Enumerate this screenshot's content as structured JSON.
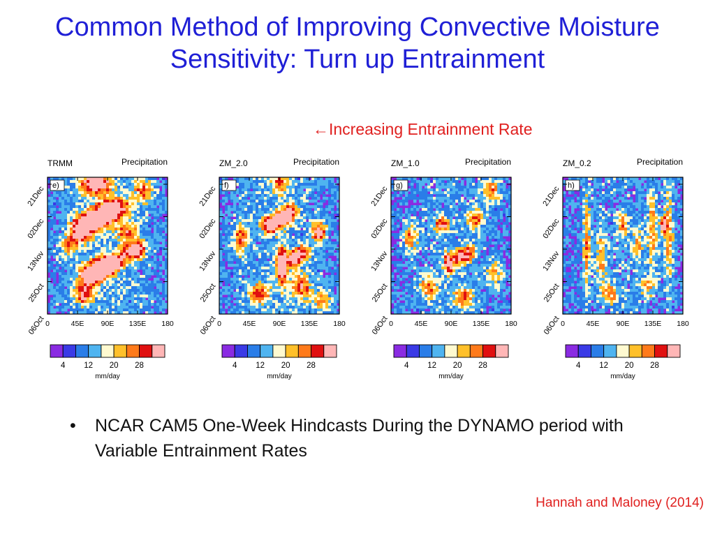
{
  "slide": {
    "title": "Common Method of Improving Convective Moisture Sensitivity: Turn up Entrainment",
    "subtitle_arrow": "←",
    "subtitle": "Increasing Entrainment Rate",
    "bullet_symbol": "•",
    "bullet": "NCAR CAM5 One-Week Hindcasts During the DYNAMO period with Variable Entrainment Rates",
    "citation": "Hannah and Maloney (2014)"
  },
  "colors": {
    "title": "#1f1fd6",
    "accent_red": "#e0201f",
    "colorbar": [
      "#8a2be2",
      "#3a3ae6",
      "#2a7de8",
      "#4fb4f0",
      "#fffad0",
      "#ffc02a",
      "#ff7a1a",
      "#e01010",
      "#ffb6b6"
    ]
  },
  "chart_data": [
    {
      "type": "heatmap",
      "panel_label": "e)",
      "model": "TRMM",
      "variable": "Precipitation",
      "x_ticks": [
        "0",
        "45E",
        "90E",
        "135E",
        "180"
      ],
      "y_ticks": [
        "06Oct",
        "25Oct",
        "13Nov",
        "02Dec",
        "21Dec"
      ],
      "colorbar_ticks": [
        "4",
        "12",
        "20",
        "28"
      ],
      "colorbar_unit": "mm/day"
    },
    {
      "type": "heatmap",
      "panel_label": "f)",
      "model": "ZM_2.0",
      "variable": "Precipitation",
      "x_ticks": [
        "0",
        "45E",
        "90E",
        "135E",
        "180"
      ],
      "y_ticks": [
        "06Oct",
        "25Oct",
        "13Nov",
        "02Dec",
        "21Dec"
      ],
      "colorbar_ticks": [
        "4",
        "12",
        "20",
        "28"
      ],
      "colorbar_unit": "mm/day"
    },
    {
      "type": "heatmap",
      "panel_label": "g)",
      "model": "ZM_1.0",
      "variable": "Precipitation",
      "x_ticks": [
        "0",
        "45E",
        "90E",
        "135E",
        "180"
      ],
      "y_ticks": [
        "06Oct",
        "25Oct",
        "13Nov",
        "02Dec",
        "21Dec"
      ],
      "colorbar_ticks": [
        "4",
        "12",
        "20",
        "28"
      ],
      "colorbar_unit": "mm/day"
    },
    {
      "type": "heatmap",
      "panel_label": "h)",
      "model": "ZM_0.2",
      "variable": "Precipitation",
      "x_ticks": [
        "0",
        "45E",
        "90E",
        "135E",
        "180"
      ],
      "y_ticks": [
        "06Oct",
        "25Oct",
        "13Nov",
        "02Dec",
        "21Dec"
      ],
      "colorbar_ticks": [
        "4",
        "12",
        "20",
        "28"
      ],
      "colorbar_unit": "mm/day"
    }
  ]
}
